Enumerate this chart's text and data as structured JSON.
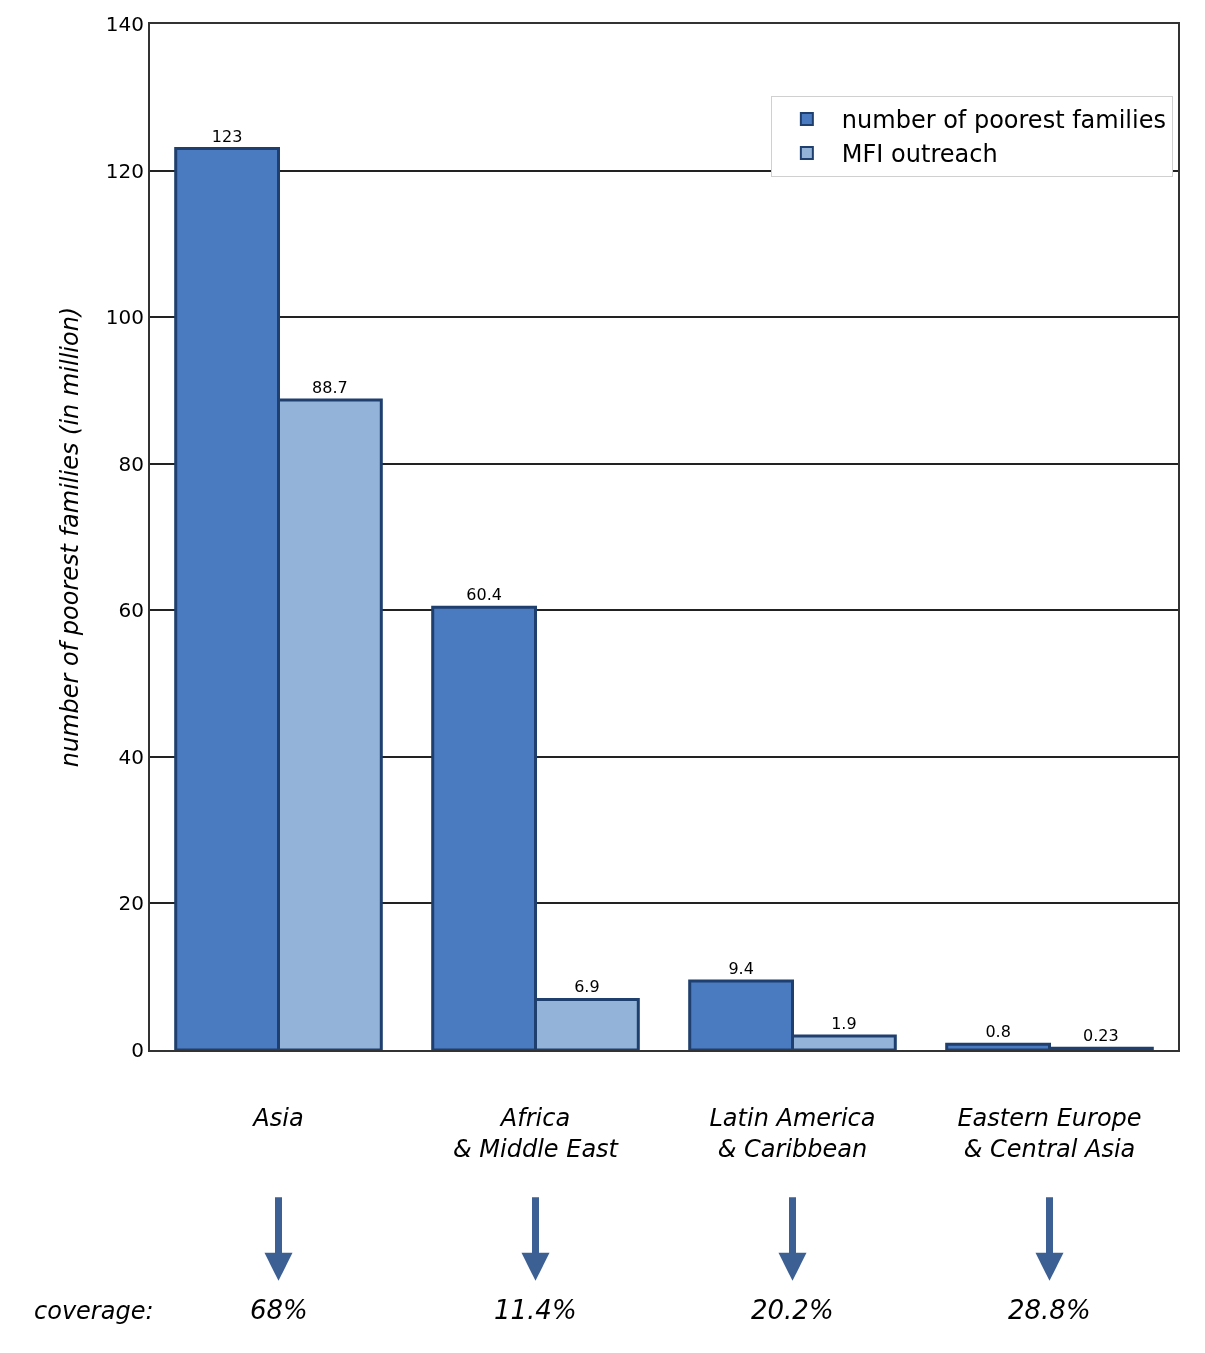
{
  "chart_data": {
    "type": "bar",
    "ylabel": "number of poorest families (in million)",
    "categories": [
      "Asia",
      "Africa\n& Middle East",
      "Latin America\n& Caribbean",
      "Eastern Europe\n& Central Asia"
    ],
    "series": [
      {
        "name": "number of poorest families",
        "color": "#4a7abf",
        "values": [
          123,
          60.4,
          9.4,
          0.8
        ]
      },
      {
        "name": "MFI outreach",
        "color": "#94b3d9",
        "values": [
          88.7,
          6.9,
          1.9,
          0.23
        ]
      }
    ],
    "data_labels": true,
    "ylim": [
      0,
      140
    ],
    "yticks": [
      0,
      20,
      40,
      60,
      80,
      100,
      120,
      140
    ],
    "grid": "y",
    "legend": "top right",
    "annotations": [
      "coverage:",
      "68%",
      "11.4%",
      "20.2%",
      "28.8%"
    ]
  }
}
